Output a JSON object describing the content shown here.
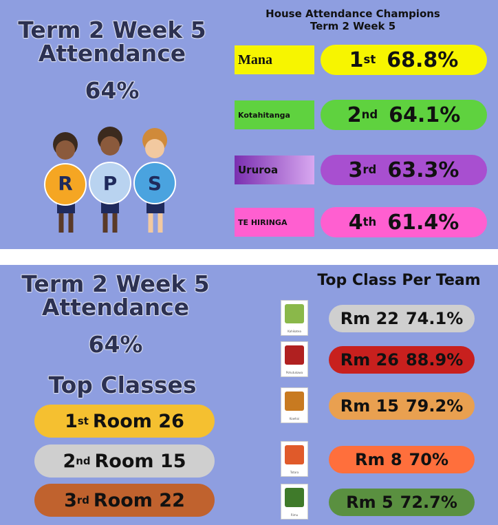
{
  "panel1": {
    "title_line1": "Term 2 Week 5",
    "title_line2": "Attendance",
    "overall": "64%",
    "logo_letters": [
      "R",
      "P",
      "S"
    ],
    "champions_title": "House Attendance Champions",
    "champions_subtitle": "Term 2 Week 5",
    "houses": [
      {
        "name": "Mana",
        "place": "1",
        "ordinal": "st",
        "percent": "68.8%"
      },
      {
        "name": "Kotahitanga",
        "place": "2",
        "ordinal": "nd",
        "percent": "64.1%"
      },
      {
        "name": "Ururoa",
        "place": "3",
        "ordinal": "rd",
        "percent": "63.3%"
      },
      {
        "name": "TE HIRINGA",
        "place": "4",
        "ordinal": "th",
        "percent": "61.4%"
      }
    ]
  },
  "panel2": {
    "title_line1": "Term 2 Week 5",
    "title_line2": "Attendance",
    "overall": "64%",
    "top_classes_title": "Top Classes",
    "top_classes": [
      {
        "place": "1",
        "ordinal": "st",
        "room": "Room 26"
      },
      {
        "place": "2",
        "ordinal": "nd",
        "room": "Room 15"
      },
      {
        "place": "3",
        "ordinal": "rd",
        "room": "Room 22"
      }
    ],
    "per_team_title": "Top Class Per Team",
    "teams": [
      {
        "icon_label": "Kahikatea",
        "room": "Rm 22",
        "percent": "74.1%"
      },
      {
        "icon_label": "Pohutukawa",
        "room": "Rm 26",
        "percent": "88.9%"
      },
      {
        "icon_label": "Kowhai",
        "room": "Rm 15",
        "percent": "79.2%"
      },
      {
        "icon_label": "Totara",
        "room": "Rm 8",
        "percent": "70%"
      },
      {
        "icon_label": "Rimu",
        "room": "Rm 5",
        "percent": "72.7%"
      }
    ]
  }
}
